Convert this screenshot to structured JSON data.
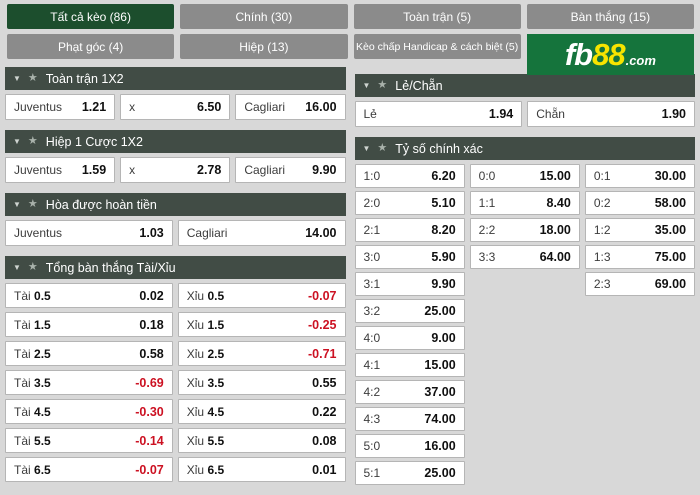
{
  "colors": {
    "brand_green": "#15743c",
    "selected_tab_green": "#1c4e2d",
    "tab_gray": "#8b8b8b",
    "header_bar": "#414c45",
    "negative_odds_red": "#cc1122"
  },
  "icons": {
    "caret": "▼",
    "star": "★"
  },
  "logo": {
    "fb": "fb",
    "eight": "88",
    "com": ".com"
  },
  "tabs": {
    "row1": [
      {
        "label": "Tất cả kèo (86)",
        "selected": true
      },
      {
        "label": "Chính (30)",
        "selected": false
      },
      {
        "label": "Toàn trận (5)",
        "selected": false
      },
      {
        "label": "Bàn thắng (15)",
        "selected": false
      }
    ],
    "row2": [
      {
        "label": "Phạt góc (4)",
        "selected": false
      },
      {
        "label": "Hiệp (13)",
        "selected": false
      },
      {
        "label": "Kèo chấp Handicap & cách biệt (5)",
        "selected": false
      }
    ]
  },
  "sections": {
    "fulltime_1x2": {
      "title": "Toàn trận 1X2",
      "cells": [
        {
          "label": "Juventus",
          "value": "1.21"
        },
        {
          "label": "x",
          "value": "6.50"
        },
        {
          "label": "Cagliari",
          "value": "16.00"
        }
      ]
    },
    "half1_1x2": {
      "title": "Hiệp 1 Cược 1X2",
      "cells": [
        {
          "label": "Juventus",
          "value": "1.59"
        },
        {
          "label": "x",
          "value": "2.78"
        },
        {
          "label": "Cagliari",
          "value": "9.90"
        }
      ]
    },
    "draw_no_bet": {
      "title": "Hòa được hoàn tiền",
      "cells": [
        {
          "label": "Juventus",
          "value": "1.03"
        },
        {
          "label": "Cagliari",
          "value": "14.00"
        }
      ]
    },
    "over_under": {
      "title": "Tổng bàn thắng Tài/Xỉu",
      "over_label": "Tài",
      "under_label": "Xỉu",
      "rows": [
        {
          "line": "0.5",
          "tai": "0.02",
          "xiu": "-0.07"
        },
        {
          "line": "1.5",
          "tai": "0.18",
          "xiu": "-0.25"
        },
        {
          "line": "2.5",
          "tai": "0.58",
          "xiu": "-0.71"
        },
        {
          "line": "3.5",
          "tai": "-0.69",
          "xiu": "0.55"
        },
        {
          "line": "4.5",
          "tai": "-0.30",
          "xiu": "0.22"
        },
        {
          "line": "5.5",
          "tai": "-0.14",
          "xiu": "0.08"
        },
        {
          "line": "6.5",
          "tai": "-0.07",
          "xiu": "0.01"
        }
      ]
    },
    "odd_even": {
      "title": "Lẻ/Chẵn",
      "cells": [
        {
          "label": "Lẻ",
          "value": "1.94"
        },
        {
          "label": "Chẵn",
          "value": "1.90"
        }
      ]
    },
    "correct_score": {
      "title": "Tỷ số chính xác",
      "col1": [
        {
          "score": "1:0",
          "value": "6.20"
        },
        {
          "score": "2:0",
          "value": "5.10"
        },
        {
          "score": "2:1",
          "value": "8.20"
        },
        {
          "score": "3:0",
          "value": "5.90"
        },
        {
          "score": "3:1",
          "value": "9.90"
        },
        {
          "score": "3:2",
          "value": "25.00"
        },
        {
          "score": "4:0",
          "value": "9.00"
        },
        {
          "score": "4:1",
          "value": "15.00"
        },
        {
          "score": "4:2",
          "value": "37.00"
        },
        {
          "score": "4:3",
          "value": "74.00"
        },
        {
          "score": "5:0",
          "value": "16.00"
        },
        {
          "score": "5:1",
          "value": "25.00"
        }
      ],
      "col2": [
        {
          "score": "0:0",
          "value": "15.00"
        },
        {
          "score": "1:1",
          "value": "8.40"
        },
        {
          "score": "2:2",
          "value": "18.00"
        },
        {
          "score": "3:3",
          "value": "64.00"
        }
      ],
      "col3": [
        {
          "score": "0:1",
          "value": "30.00"
        },
        {
          "score": "0:2",
          "value": "58.00"
        },
        {
          "score": "1:2",
          "value": "35.00"
        },
        {
          "score": "1:3",
          "value": "75.00"
        },
        {
          "score": "2:3",
          "value": "69.00"
        }
      ]
    }
  }
}
